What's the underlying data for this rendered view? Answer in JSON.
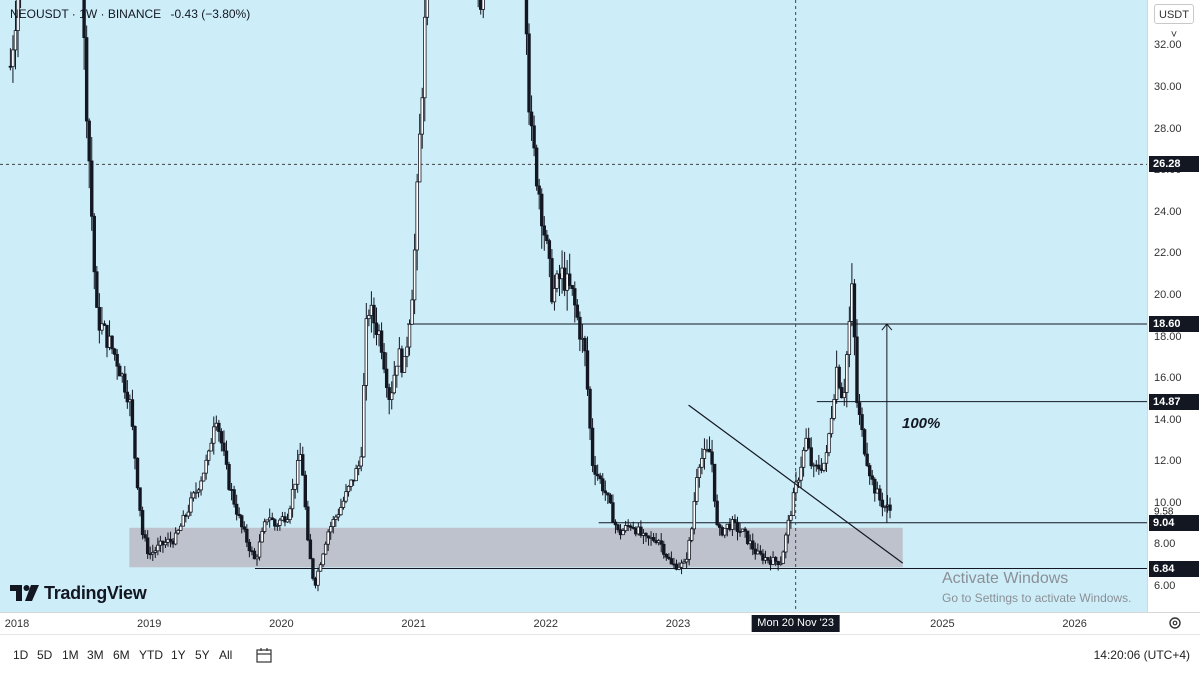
{
  "header": {
    "symbol": "NEOUSDT",
    "interval": "1W",
    "exchange": "BINANCE",
    "change": "-0.43 (−3.80%)"
  },
  "currency_selector": "USDT ˅",
  "logo_text": "TradingView",
  "annotation_label": "100%",
  "watermark": {
    "title": "Activate Windows",
    "subtitle": "Go to Settings to activate Windows."
  },
  "crosshair_date": "Mon 20 Nov '23",
  "bottom_bar": {
    "ranges": [
      "1D",
      "5D",
      "1M",
      "3M",
      "6M",
      "YTD",
      "1Y",
      "5Y",
      "All"
    ],
    "clock": "14:20:06 (UTC+4)"
  },
  "colors": {
    "background": "#cdeef8",
    "candles": "#131722",
    "zone": "#bdbdc6",
    "label_bg": "#131722"
  },
  "chart_data": {
    "type": "candlestick",
    "interval": "1W",
    "y_ticks": [
      32,
      30,
      28,
      26,
      24,
      22,
      20,
      18,
      16,
      14,
      12,
      10,
      8,
      6
    ],
    "y_tick_labels": [
      "32.00",
      "30.00",
      "28.00",
      "26.00",
      "24.00",
      "22.00",
      "20.00",
      "18.00",
      "16.00",
      "14.00",
      "12.00",
      "10.00",
      "8.00",
      "6.00"
    ],
    "x_ticks": [
      2018,
      2019,
      2020,
      2021,
      2022,
      2023,
      2024,
      2025,
      2026
    ],
    "x_tick_labels": [
      "2018",
      "2019",
      "2020",
      "2021",
      "2022",
      "2023",
      "",
      "2025",
      "2026"
    ],
    "price_labels": [
      {
        "value": 26.28,
        "text": "26.28"
      },
      {
        "value": 18.6,
        "text": "18.60"
      },
      {
        "value": 14.87,
        "text": "14.87"
      },
      {
        "value": 9.04,
        "text": "9.04"
      },
      {
        "value": 6.84,
        "text": "6.84"
      }
    ],
    "last_price": {
      "value": 9.58,
      "text": "9.58"
    },
    "horizontal_levels": [
      18.6,
      14.87,
      9.04,
      6.84
    ],
    "support_zone": {
      "low": 6.9,
      "high": 8.8
    },
    "trendline": {
      "from": [
        2023.08,
        14.7
      ],
      "to": [
        2024.7,
        7.1
      ]
    },
    "target_arrow": {
      "x": 2024.58,
      "from": 9.04,
      "to": 18.6,
      "label": "100%"
    },
    "crosshair": {
      "x": 2023.89,
      "y": 26.28
    },
    "anchors": [
      [
        2017.95,
        31.0
      ],
      [
        2018.1,
        41.0
      ],
      [
        2018.25,
        90.0
      ],
      [
        2018.4,
        60.0
      ],
      [
        2018.5,
        33.0
      ],
      [
        2018.6,
        19.0
      ],
      [
        2018.75,
        17.0
      ],
      [
        2018.85,
        15.0
      ],
      [
        2018.95,
        8.5
      ],
      [
        2019.0,
        7.5
      ],
      [
        2019.1,
        8.0
      ],
      [
        2019.2,
        8.3
      ],
      [
        2019.35,
        10.5
      ],
      [
        2019.45,
        12.2
      ],
      [
        2019.5,
        14.5
      ],
      [
        2019.6,
        11.0
      ],
      [
        2019.7,
        8.8
      ],
      [
        2019.8,
        7.2
      ],
      [
        2019.9,
        9.5
      ],
      [
        2019.95,
        8.9
      ],
      [
        2020.05,
        9.5
      ],
      [
        2020.15,
        12.5
      ],
      [
        2020.2,
        8.0
      ],
      [
        2020.25,
        6.0
      ],
      [
        2020.35,
        8.6
      ],
      [
        2020.45,
        9.8
      ],
      [
        2020.6,
        12.0
      ],
      [
        2020.65,
        19.5
      ],
      [
        2020.75,
        18.0
      ],
      [
        2020.82,
        15.0
      ],
      [
        2020.88,
        17.2
      ],
      [
        2020.93,
        16.5
      ],
      [
        2021.0,
        21.0
      ],
      [
        2021.1,
        35.0
      ],
      [
        2021.2,
        48.0
      ],
      [
        2021.3,
        80.0
      ],
      [
        2021.4,
        60.0
      ],
      [
        2021.45,
        40.0
      ],
      [
        2021.5,
        32.0
      ],
      [
        2021.58,
        50.0
      ],
      [
        2021.7,
        55.0
      ],
      [
        2021.8,
        45.0
      ],
      [
        2021.88,
        28.0
      ],
      [
        2021.95,
        25.0
      ],
      [
        2022.05,
        20.0
      ],
      [
        2022.12,
        21.0
      ],
      [
        2022.2,
        20.0
      ],
      [
        2022.3,
        17.0
      ],
      [
        2022.35,
        12.0
      ],
      [
        2022.45,
        10.5
      ],
      [
        2022.55,
        8.5
      ],
      [
        2022.65,
        9.0
      ],
      [
        2022.75,
        8.2
      ],
      [
        2022.85,
        8.3
      ],
      [
        2022.95,
        7.0
      ],
      [
        2023.05,
        7.0
      ],
      [
        2023.1,
        8.5
      ],
      [
        2023.15,
        12.0
      ],
      [
        2023.25,
        12.5
      ],
      [
        2023.3,
        8.5
      ],
      [
        2023.4,
        9.0
      ],
      [
        2023.5,
        8.5
      ],
      [
        2023.6,
        7.5
      ],
      [
        2023.72,
        7.2
      ],
      [
        2023.78,
        7.2
      ],
      [
        2023.85,
        9.5
      ],
      [
        2023.9,
        11.0
      ],
      [
        2023.97,
        13.0
      ],
      [
        2024.02,
        11.5
      ],
      [
        2024.12,
        12.0
      ],
      [
        2024.2,
        16.5
      ],
      [
        2024.25,
        15.0
      ],
      [
        2024.32,
        20.5
      ],
      [
        2024.35,
        15.0
      ],
      [
        2024.4,
        13.0
      ],
      [
        2024.47,
        11.0
      ],
      [
        2024.52,
        10.2
      ],
      [
        2024.57,
        9.8
      ],
      [
        2024.62,
        9.58
      ]
    ]
  }
}
